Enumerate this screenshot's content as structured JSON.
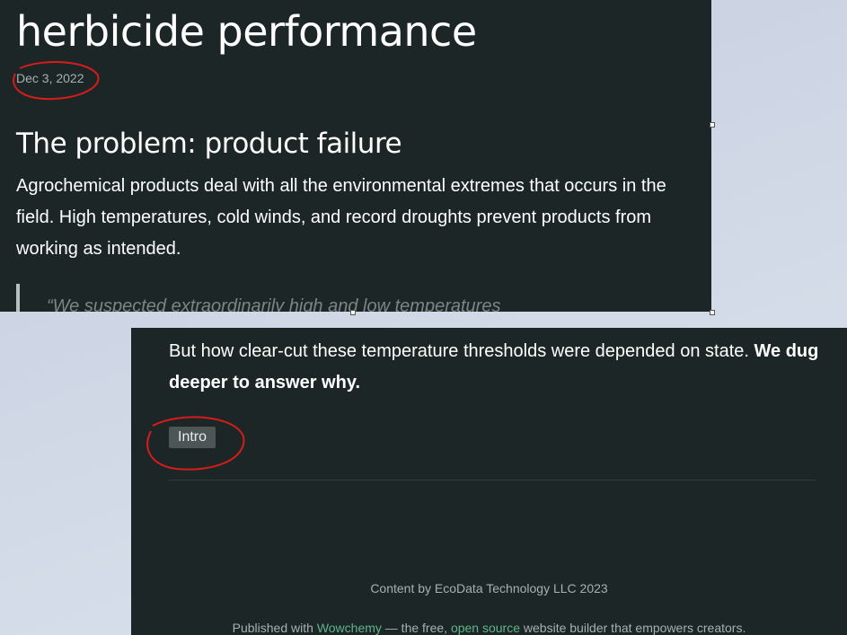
{
  "article": {
    "title": "herbicide performance",
    "date": "Dec 3, 2022",
    "heading": "The problem: product failure",
    "paragraph": "Agrochemical products deal with all the environmental extremes that occurs in the field. High temperatures, cold winds, and record droughts prevent products from working as intended.",
    "quote": "“We suspected extraordinarily high and low temperatures",
    "conclusion": "But how clear-cut these temperature thresholds were depended on state.",
    "conclusion_bold": "We dug deeper to answer why.",
    "tag": "Intro"
  },
  "footer": {
    "copyright": "Content by EcoData Technology LLC 2023",
    "published_prefix": "Published with",
    "wowchemy": "Wowchemy",
    "middle": "— the free,",
    "open_source": "open source",
    "suffix": "website builder that empowers creators."
  }
}
